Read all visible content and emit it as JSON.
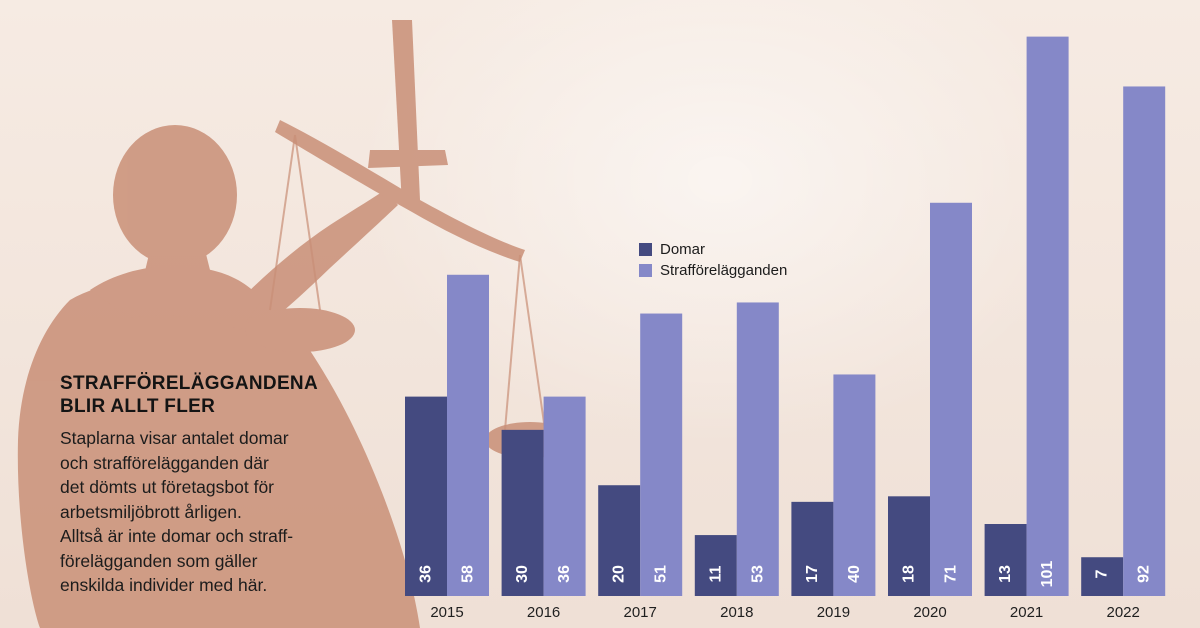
{
  "infographic": {
    "title": "STRAFFÖRELÄGGANDENA\nBLIR ALLT FLER",
    "body": "Staplarna visar antalet domar\noch strafförelägganden där\ndet dömts ut företagsbot för\narbetsmiljöbrott årligen.\nAlltså är inte domar och straff-\nförelägganden som gäller\nenskilda individer med här."
  },
  "colors": {
    "domar": "#444a80",
    "strafforelagganden": "#8588c8",
    "statue": "#c98f77",
    "label_text": "#ffffff",
    "axis_text": "#1f1f1f"
  },
  "chart_data": {
    "type": "bar",
    "categories": [
      "2015",
      "2016",
      "2017",
      "2018",
      "2019",
      "2020",
      "2021",
      "2022"
    ],
    "series": [
      {
        "name": "Domar",
        "values": [
          36,
          30,
          20,
          11,
          17,
          18,
          13,
          7
        ]
      },
      {
        "name": "Strafförelägganden",
        "values": [
          58,
          36,
          51,
          53,
          40,
          71,
          101,
          92
        ]
      }
    ],
    "ylim": [
      0,
      104
    ],
    "legend": "top-left of plot",
    "grid": false,
    "data_labels": "inside bottom, rotated vertical"
  }
}
